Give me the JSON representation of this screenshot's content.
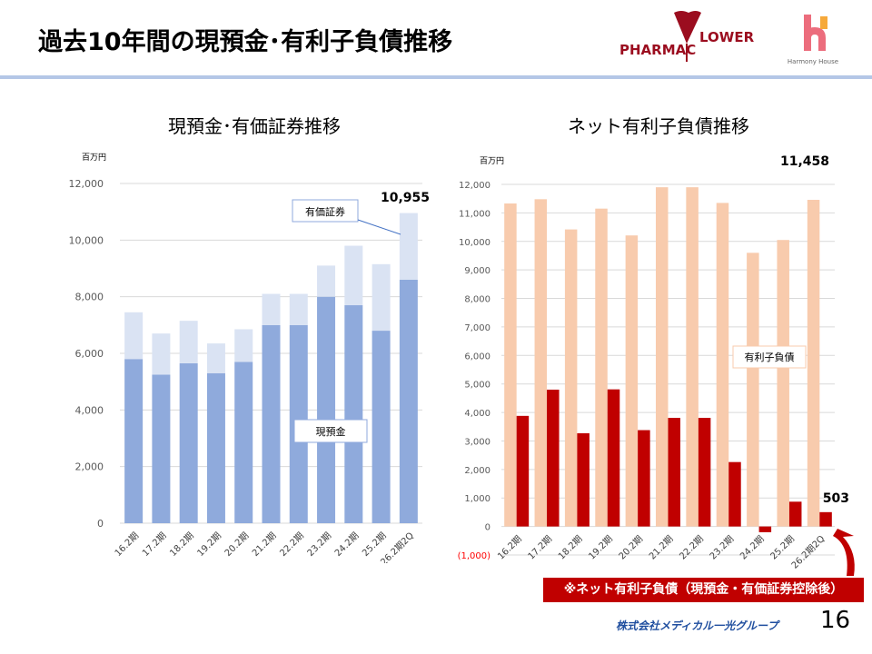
{
  "header": {
    "title": "過去10年間の現預金･有利子負債推移",
    "logos": [
      "PHARMAC FLOWER",
      "Harmony House"
    ]
  },
  "footer": {
    "note": "※ネット有利子負債（現預金・有価証券控除後）",
    "company": "株式会社メディカル一光グループ",
    "page": "16"
  },
  "colors": {
    "cash": "#8faadc",
    "securities": "#dae3f3",
    "debt": "#f8cbad",
    "net_debt": "#c00000",
    "accent": "#b4c7e7"
  },
  "chart_data": [
    {
      "type": "bar",
      "stacked": true,
      "title": "現預金･有価証券推移",
      "unit": "百万円",
      "categories": [
        "16.2期",
        "17.2期",
        "18.2期",
        "19.2期",
        "20.2期",
        "21.2期",
        "22.2期",
        "23.2期",
        "24.2期",
        "25.2期",
        "26.2期2Q"
      ],
      "series": [
        {
          "name": "現預金",
          "values": [
            5800,
            5250,
            5650,
            5300,
            5700,
            7000,
            7000,
            8000,
            7700,
            6800,
            8600
          ],
          "color": "#8faadc"
        },
        {
          "name": "有価証券",
          "values": [
            1650,
            1450,
            1500,
            1050,
            1150,
            1100,
            1100,
            1100,
            2100,
            2350,
            2355
          ],
          "color": "#dae3f3"
        }
      ],
      "annotation": "10,955",
      "ylim": [
        0,
        12000
      ],
      "yticks": [
        "0",
        "2,000",
        "4,000",
        "6,000",
        "8,000",
        "10,000",
        "12,000"
      ],
      "grid": true
    },
    {
      "type": "bar",
      "title": "ネット有利子負債推移",
      "unit": "百万円",
      "categories": [
        "16.2期",
        "17.2期",
        "18.2期",
        "19.2期",
        "20.2期",
        "21.2期",
        "22.2期",
        "23.2期",
        "24.2期",
        "25.2期",
        "26.2期2Q"
      ],
      "series": [
        {
          "name": "有利子負債",
          "values": [
            11330,
            11480,
            10420,
            11150,
            10210,
            11900,
            11900,
            11350,
            9600,
            10050,
            11458
          ],
          "color": "#f8cbad"
        },
        {
          "values": [
            3880,
            4800,
            3270,
            4810,
            3380,
            3810,
            3810,
            2260,
            -200,
            870,
            503
          ],
          "color": "#c00000"
        }
      ],
      "annotations": [
        "11,458",
        "503"
      ],
      "ylim": [
        -1000,
        12000
      ],
      "yticks": [
        "(1,000)",
        "0",
        "1,000",
        "2,000",
        "3,000",
        "4,000",
        "5,000",
        "6,000",
        "7,000",
        "8,000",
        "9,000",
        "10,000",
        "11,000",
        "12,000"
      ],
      "grid": true
    }
  ]
}
